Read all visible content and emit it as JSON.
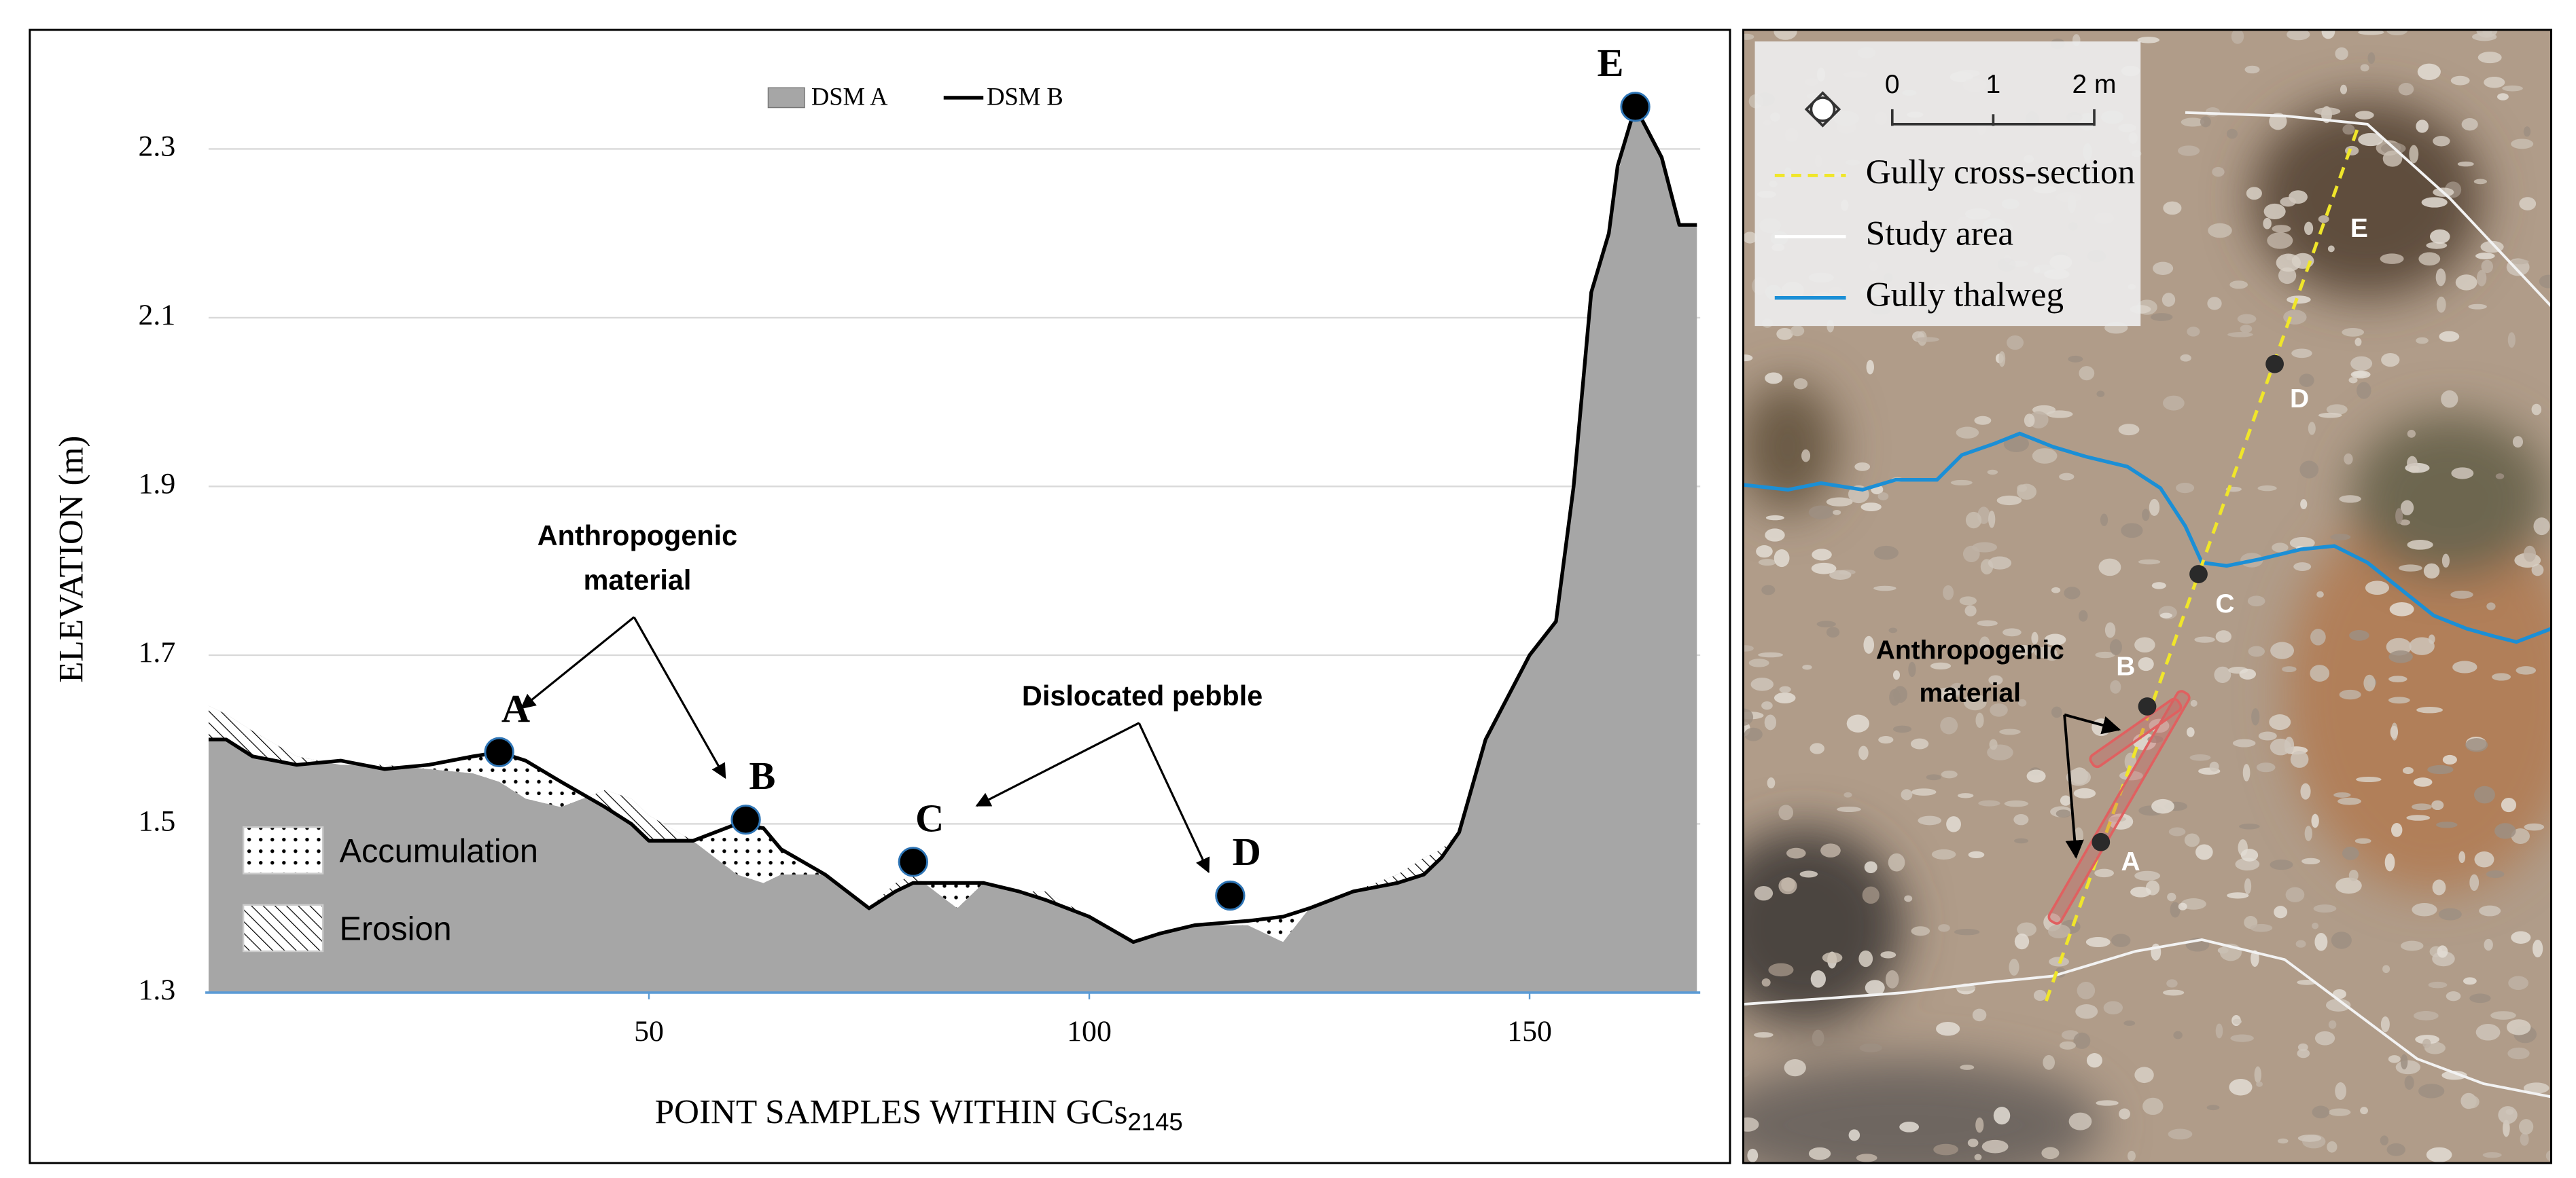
{
  "chart_data": {
    "type": "area",
    "y_label": "ELEVATION (m)",
    "x_label": "POINT SAMPLES WITHIN GCs",
    "x_label_subscript": "2145",
    "x": [
      0,
      2,
      5,
      10,
      15,
      20,
      25,
      30,
      33,
      36,
      40,
      45,
      48,
      50,
      55,
      60,
      63,
      65,
      70,
      75,
      78,
      80,
      85,
      88,
      92,
      95,
      100,
      105,
      108,
      112,
      118,
      122,
      125,
      130,
      135,
      138,
      140,
      142,
      145,
      150,
      153,
      155,
      157,
      159,
      160,
      162,
      164,
      165,
      166,
      167,
      169
    ],
    "series": [
      {
        "name": "DSM A",
        "type": "area",
        "color": "#a6a6a6",
        "values": [
          1.64,
          1.63,
          1.61,
          1.58,
          1.57,
          1.57,
          1.565,
          1.56,
          1.55,
          1.53,
          1.52,
          1.54,
          1.53,
          1.51,
          1.48,
          1.44,
          1.43,
          1.44,
          1.44,
          1.4,
          1.43,
          1.44,
          1.4,
          1.43,
          1.42,
          1.42,
          1.39,
          1.36,
          1.37,
          1.38,
          1.38,
          1.36,
          1.4,
          1.42,
          1.44,
          1.46,
          1.47,
          1.49,
          1.6,
          1.7,
          1.74,
          1.9,
          2.13,
          2.2,
          2.27,
          2.35,
          2.31,
          2.29,
          2.25,
          2.21,
          2.21
        ]
      },
      {
        "name": "DSM B",
        "type": "line",
        "color": "#000000",
        "values": [
          1.6,
          1.6,
          1.58,
          1.57,
          1.575,
          1.565,
          1.57,
          1.58,
          1.585,
          1.575,
          1.55,
          1.52,
          1.5,
          1.48,
          1.48,
          1.5,
          1.495,
          1.47,
          1.44,
          1.4,
          1.42,
          1.43,
          1.43,
          1.43,
          1.42,
          1.41,
          1.39,
          1.36,
          1.37,
          1.38,
          1.385,
          1.39,
          1.4,
          1.42,
          1.43,
          1.44,
          1.46,
          1.49,
          1.6,
          1.7,
          1.74,
          1.9,
          2.13,
          2.2,
          2.28,
          2.35,
          2.31,
          2.29,
          2.25,
          2.21,
          2.21
        ]
      }
    ],
    "xlim": [
      0,
      169
    ],
    "xticks": [
      50,
      100,
      150
    ],
    "ylim": [
      1.3,
      2.4
    ],
    "yticks": [
      1.3,
      1.5,
      1.7,
      1.9,
      2.1,
      2.3
    ],
    "grid": true,
    "difference_legend": [
      {
        "name": "Accumulation",
        "pattern": "dots"
      },
      {
        "name": "Erosion",
        "pattern": "hatch"
      }
    ],
    "points": [
      {
        "label": "A",
        "x": 33,
        "y": 1.585
      },
      {
        "label": "B",
        "x": 61,
        "y": 1.505
      },
      {
        "label": "C",
        "x": 80,
        "y": 1.455
      },
      {
        "label": "D",
        "x": 116,
        "y": 1.415
      },
      {
        "label": "E",
        "x": 162,
        "y": 2.35
      }
    ],
    "annotations": [
      {
        "lines": [
          "Anthropogenic",
          "material"
        ]
      },
      {
        "lines": [
          "Dislocated pebble"
        ]
      }
    ]
  },
  "map": {
    "scale_labels": [
      "0",
      "1",
      "2 m"
    ],
    "legend": [
      "Gully cross-section",
      "Study area",
      "Gully thalweg"
    ],
    "points": [
      "A",
      "B",
      "C",
      "D",
      "E"
    ],
    "annotation": [
      "Anthropogenic",
      "material"
    ]
  }
}
